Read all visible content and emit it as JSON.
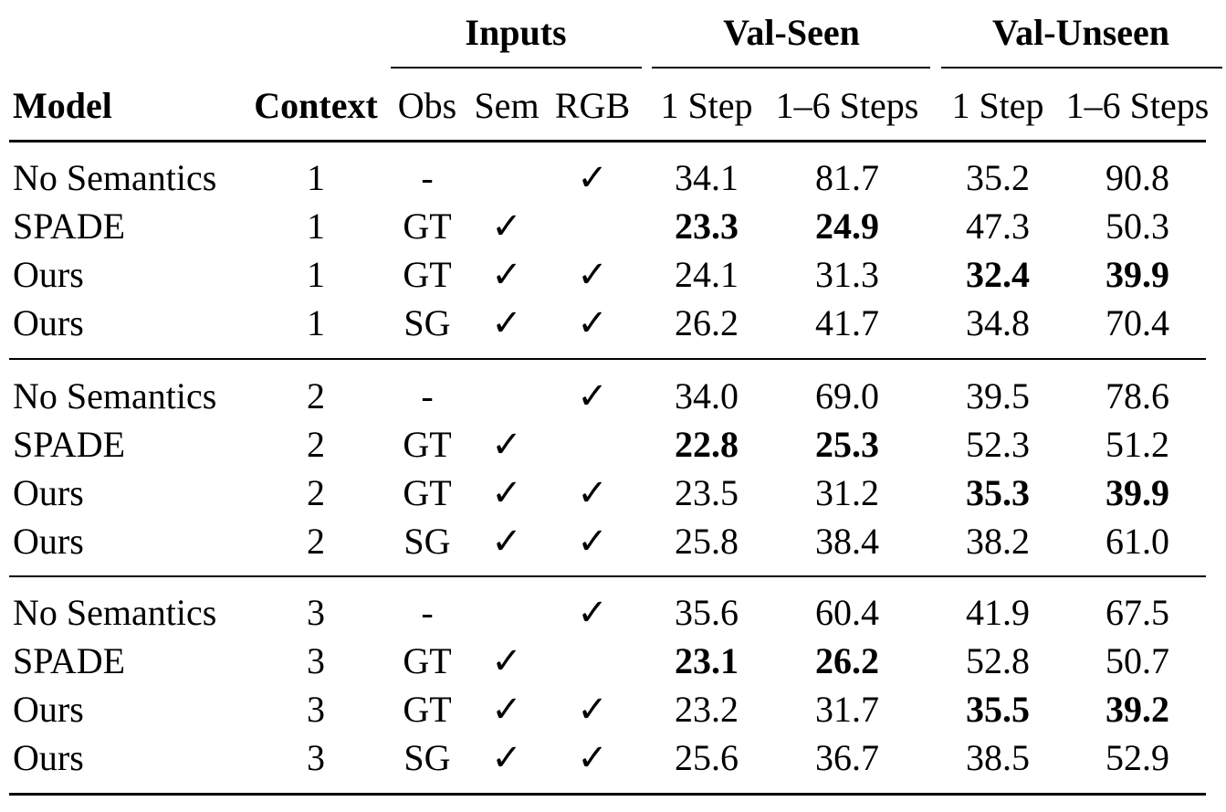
{
  "table": {
    "group_headers": {
      "inputs": "Inputs",
      "val_seen": "Val-Seen",
      "val_unseen": "Val-Unseen"
    },
    "columns": [
      "Model",
      "Context",
      "Obs",
      "Sem",
      "RGB",
      "1 Step",
      "1–6 Steps",
      "1 Step",
      "1–6 Steps"
    ],
    "check_mark": "✓",
    "rows": [
      {
        "model": "No Semantics",
        "context": "1",
        "obs": "-",
        "sem": "",
        "rgb": "✓",
        "vs1": "34.1",
        "vs6": "81.7",
        "vu1": "35.2",
        "vu6": "90.8",
        "bold": []
      },
      {
        "model": "SPADE",
        "context": "1",
        "obs": "GT",
        "sem": "✓",
        "rgb": "",
        "vs1": "23.3",
        "vs6": "24.9",
        "vu1": "47.3",
        "vu6": "50.3",
        "bold": [
          "vs1",
          "vs6"
        ]
      },
      {
        "model": "Ours",
        "context": "1",
        "obs": "GT",
        "sem": "✓",
        "rgb": "✓",
        "vs1": "24.1",
        "vs6": "31.3",
        "vu1": "32.4",
        "vu6": "39.9",
        "bold": [
          "vu1",
          "vu6"
        ]
      },
      {
        "model": "Ours",
        "context": "1",
        "obs": "SG",
        "sem": "✓",
        "rgb": "✓",
        "vs1": "26.2",
        "vs6": "41.7",
        "vu1": "34.8",
        "vu6": "70.4",
        "bold": []
      },
      {
        "model": "No Semantics",
        "context": "2",
        "obs": "-",
        "sem": "",
        "rgb": "✓",
        "vs1": "34.0",
        "vs6": "69.0",
        "vu1": "39.5",
        "vu6": "78.6",
        "bold": []
      },
      {
        "model": "SPADE",
        "context": "2",
        "obs": "GT",
        "sem": "✓",
        "rgb": "",
        "vs1": "22.8",
        "vs6": "25.3",
        "vu1": "52.3",
        "vu6": "51.2",
        "bold": [
          "vs1",
          "vs6"
        ]
      },
      {
        "model": "Ours",
        "context": "2",
        "obs": "GT",
        "sem": "✓",
        "rgb": "✓",
        "vs1": "23.5",
        "vs6": "31.2",
        "vu1": "35.3",
        "vu6": "39.9",
        "bold": [
          "vu1",
          "vu6"
        ]
      },
      {
        "model": "Ours",
        "context": "2",
        "obs": "SG",
        "sem": "✓",
        "rgb": "✓",
        "vs1": "25.8",
        "vs6": "38.4",
        "vu1": "38.2",
        "vu6": "61.0",
        "bold": []
      },
      {
        "model": "No Semantics",
        "context": "3",
        "obs": "-",
        "sem": "",
        "rgb": "✓",
        "vs1": "35.6",
        "vs6": "60.4",
        "vu1": "41.9",
        "vu6": "67.5",
        "bold": []
      },
      {
        "model": "SPADE",
        "context": "3",
        "obs": "GT",
        "sem": "✓",
        "rgb": "",
        "vs1": "23.1",
        "vs6": "26.2",
        "vu1": "52.8",
        "vu6": "50.7",
        "bold": [
          "vs1",
          "vs6"
        ]
      },
      {
        "model": "Ours",
        "context": "3",
        "obs": "GT",
        "sem": "✓",
        "rgb": "✓",
        "vs1": "23.2",
        "vs6": "31.7",
        "vu1": "35.5",
        "vu6": "39.2",
        "bold": [
          "vu1",
          "vu6"
        ]
      },
      {
        "model": "Ours",
        "context": "3",
        "obs": "SG",
        "sem": "✓",
        "rgb": "✓",
        "vs1": "25.6",
        "vs6": "36.7",
        "vu1": "38.5",
        "vu6": "52.9",
        "bold": []
      }
    ]
  }
}
